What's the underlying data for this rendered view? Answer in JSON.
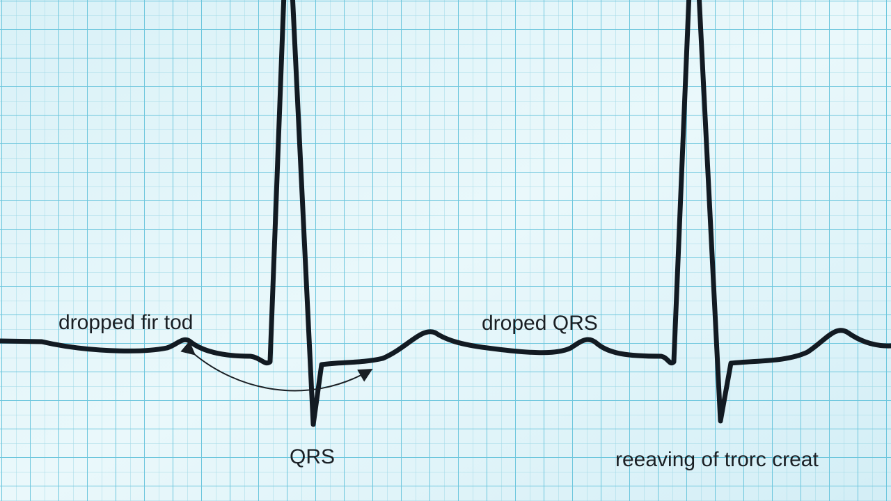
{
  "annotations": [
    "dropped fir tod",
    "droped QRS",
    "QRS",
    "reeaving of trorc creat"
  ]
}
